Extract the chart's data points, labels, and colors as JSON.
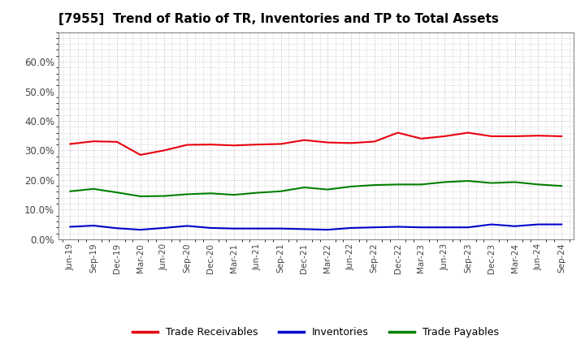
{
  "title": "[7955]  Trend of Ratio of TR, Inventories and TP to Total Assets",
  "x_labels": [
    "Jun-19",
    "Sep-19",
    "Dec-19",
    "Mar-20",
    "Jun-20",
    "Sep-20",
    "Dec-20",
    "Mar-21",
    "Jun-21",
    "Sep-21",
    "Dec-21",
    "Mar-22",
    "Jun-22",
    "Sep-22",
    "Dec-22",
    "Mar-23",
    "Jun-23",
    "Sep-23",
    "Dec-23",
    "Mar-24",
    "Jun-24",
    "Sep-24"
  ],
  "trade_receivables": [
    0.322,
    0.331,
    0.329,
    0.285,
    0.3,
    0.319,
    0.32,
    0.317,
    0.32,
    0.322,
    0.335,
    0.327,
    0.325,
    0.33,
    0.36,
    0.34,
    0.348,
    0.36,
    0.348,
    0.348,
    0.35,
    0.348
  ],
  "inventories": [
    0.042,
    0.046,
    0.037,
    0.032,
    0.038,
    0.045,
    0.038,
    0.036,
    0.036,
    0.036,
    0.034,
    0.032,
    0.038,
    0.04,
    0.042,
    0.04,
    0.04,
    0.04,
    0.05,
    0.044,
    0.05,
    0.05
  ],
  "trade_payables": [
    0.162,
    0.17,
    0.158,
    0.145,
    0.146,
    0.152,
    0.155,
    0.15,
    0.157,
    0.162,
    0.175,
    0.168,
    0.178,
    0.183,
    0.185,
    0.185,
    0.193,
    0.197,
    0.19,
    0.193,
    0.185,
    0.18
  ],
  "line_color_tr": "#e8000d",
  "line_color_inv": "#0000cc",
  "line_color_tp": "#008000",
  "ylim": [
    0.0,
    0.7
  ],
  "yticks": [
    0.0,
    0.1,
    0.2,
    0.3,
    0.4,
    0.5,
    0.6
  ],
  "plot_bg_color": "#f0f0f0",
  "outer_bg_color": "#ffffff",
  "grid_color": "#bbbbbb",
  "title_fontsize": 11,
  "legend_labels": [
    "Trade Receivables",
    "Inventories",
    "Trade Payables"
  ]
}
